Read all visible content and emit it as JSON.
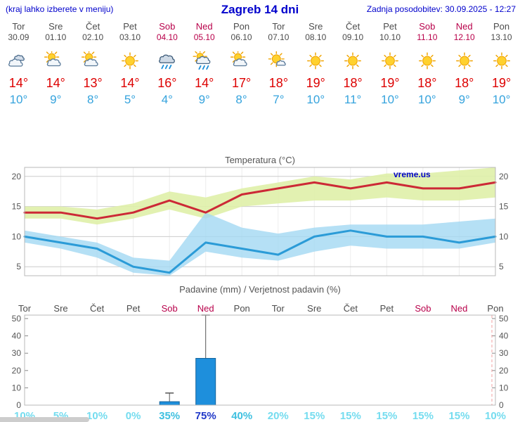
{
  "header": {
    "left_note": "(kraj lahko izberete v meniju)",
    "title": "Zagreb 14 dni",
    "updated": "Zadnja posodobitev: 30.09.2025 - 12:27"
  },
  "colors": {
    "accent_blue": "#0000cc",
    "weekend_red": "#b8004a",
    "tmax_red": "#dd0000",
    "tmin_blue": "#35a3dd",
    "prob_low": "#74dcef",
    "prob_mid": "#3fc0e0",
    "prob_high": "#2038c8",
    "bar_fill": "#1e8fdc",
    "bar_stroke": "#14649c"
  },
  "days": [
    {
      "name": "Tor",
      "date": "30.09",
      "weekend": false,
      "icon": "cloudy",
      "tmax": "14°",
      "tmin": "10°",
      "prob_label": "10%",
      "prob_level": "low"
    },
    {
      "name": "Sre",
      "date": "01.10",
      "weekend": false,
      "icon": "partly-cloudy",
      "tmax": "14°",
      "tmin": "9°",
      "prob_label": "5%",
      "prob_level": "low"
    },
    {
      "name": "Čet",
      "date": "02.10",
      "weekend": false,
      "icon": "partly-cloudy",
      "tmax": "13°",
      "tmin": "8°",
      "prob_label": "10%",
      "prob_level": "low"
    },
    {
      "name": "Pet",
      "date": "03.10",
      "weekend": false,
      "icon": "sunny",
      "tmax": "14°",
      "tmin": "5°",
      "prob_label": "0%",
      "prob_level": "low"
    },
    {
      "name": "Sob",
      "date": "04.10",
      "weekend": true,
      "icon": "rain",
      "tmax": "16°",
      "tmin": "4°",
      "prob_label": "35%",
      "prob_level": "mid"
    },
    {
      "name": "Ned",
      "date": "05.10",
      "weekend": true,
      "icon": "showers",
      "tmax": "14°",
      "tmin": "9°",
      "prob_label": "75%",
      "prob_level": "high"
    },
    {
      "name": "Pon",
      "date": "06.10",
      "weekend": false,
      "icon": "partly-cloudy",
      "tmax": "17°",
      "tmin": "8°",
      "prob_label": "40%",
      "prob_level": "mid"
    },
    {
      "name": "Tor",
      "date": "07.10",
      "weekend": false,
      "icon": "mostly-sunny",
      "tmax": "18°",
      "tmin": "7°",
      "prob_label": "20%",
      "prob_level": "low"
    },
    {
      "name": "Sre",
      "date": "08.10",
      "weekend": false,
      "icon": "sunny",
      "tmax": "19°",
      "tmin": "10°",
      "prob_label": "15%",
      "prob_level": "low"
    },
    {
      "name": "Čet",
      "date": "09.10",
      "weekend": false,
      "icon": "sunny",
      "tmax": "18°",
      "tmin": "11°",
      "prob_label": "15%",
      "prob_level": "low"
    },
    {
      "name": "Pet",
      "date": "10.10",
      "weekend": false,
      "icon": "sunny",
      "tmax": "19°",
      "tmin": "10°",
      "prob_label": "15%",
      "prob_level": "low"
    },
    {
      "name": "Sob",
      "date": "11.10",
      "weekend": true,
      "icon": "sunny",
      "tmax": "18°",
      "tmin": "10°",
      "prob_label": "15%",
      "prob_level": "low"
    },
    {
      "name": "Ned",
      "date": "12.10",
      "weekend": true,
      "icon": "sunny",
      "tmax": "18°",
      "tmin": "9°",
      "prob_label": "15%",
      "prob_level": "low"
    },
    {
      "name": "Pon",
      "date": "13.10",
      "weekend": false,
      "icon": "sunny",
      "tmax": "19°",
      "tmin": "10°",
      "prob_label": "10%",
      "prob_level": "low"
    }
  ],
  "chart_data": [
    {
      "type": "line",
      "title": "Temperatura (°C)",
      "watermark": "vreme.us",
      "x_labels": [
        "Tor 30.09",
        "Sre 01.10",
        "Čet 02.10",
        "Pet 03.10",
        "Sob 04.10",
        "Ned 05.10",
        "Pon 06.10",
        "Tor 07.10",
        "Sre 08.10",
        "Čet 09.10",
        "Pet 10.10",
        "Sob 11.10",
        "Ned 12.10",
        "Pon 13.10"
      ],
      "yticks": [
        5,
        10,
        15,
        20
      ],
      "ylim": [
        3.5,
        21.5
      ],
      "grid": true,
      "series": [
        {
          "name": "max-temperature",
          "color": "#cc2936",
          "values": [
            14,
            14,
            13,
            14,
            16,
            14,
            17,
            18,
            19,
            18,
            19,
            18,
            18,
            19
          ]
        },
        {
          "name": "min-temperature",
          "color": "#2b9bd7",
          "values": [
            10,
            9,
            8,
            5,
            4,
            9,
            8,
            7,
            10,
            11,
            10,
            10,
            9,
            10
          ]
        }
      ],
      "bands": [
        {
          "name": "max-temp-range",
          "color": "#dff0a8",
          "opacity": 0.9,
          "upper": [
            15,
            15,
            14.5,
            15.5,
            17.5,
            16.5,
            18,
            19,
            20,
            19.5,
            20.5,
            20.5,
            21,
            21.5
          ],
          "lower": [
            13,
            13,
            12,
            13,
            14.5,
            13,
            15,
            15.5,
            16,
            16,
            16.5,
            16,
            16,
            16.5
          ]
        },
        {
          "name": "min-temp-range",
          "color": "#a3d8f3",
          "opacity": 0.8,
          "upper": [
            11,
            10,
            9,
            6.5,
            6,
            14,
            11.5,
            10.5,
            11.5,
            12,
            12,
            12,
            12.5,
            13
          ],
          "lower": [
            9,
            8,
            6.5,
            4,
            3.5,
            7.5,
            6.5,
            6,
            7.5,
            8.5,
            8,
            8,
            8,
            9
          ]
        }
      ]
    },
    {
      "type": "bar",
      "title": "Padavine (mm) / Verjetnost padavin (%)",
      "categories": [
        "Tor",
        "Sre",
        "Čet",
        "Pet",
        "Sob",
        "Ned",
        "Pon",
        "Tor",
        "Sre",
        "Čet",
        "Pet",
        "Sob",
        "Ned",
        "Pon"
      ],
      "yticks": [
        0,
        10,
        20,
        30,
        40,
        50
      ],
      "ylim": [
        0,
        52
      ],
      "bars_mm": [
        0,
        0,
        0,
        0,
        2,
        27,
        0,
        0,
        0,
        0,
        0,
        0,
        0,
        0
      ],
      "whisker_max_mm": [
        0,
        0,
        0,
        0,
        7,
        52,
        0,
        0,
        0,
        0,
        0,
        0,
        0,
        0
      ],
      "probabilities_pct": [
        10,
        5,
        10,
        0,
        35,
        75,
        40,
        20,
        15,
        15,
        15,
        15,
        15,
        10
      ]
    }
  ]
}
